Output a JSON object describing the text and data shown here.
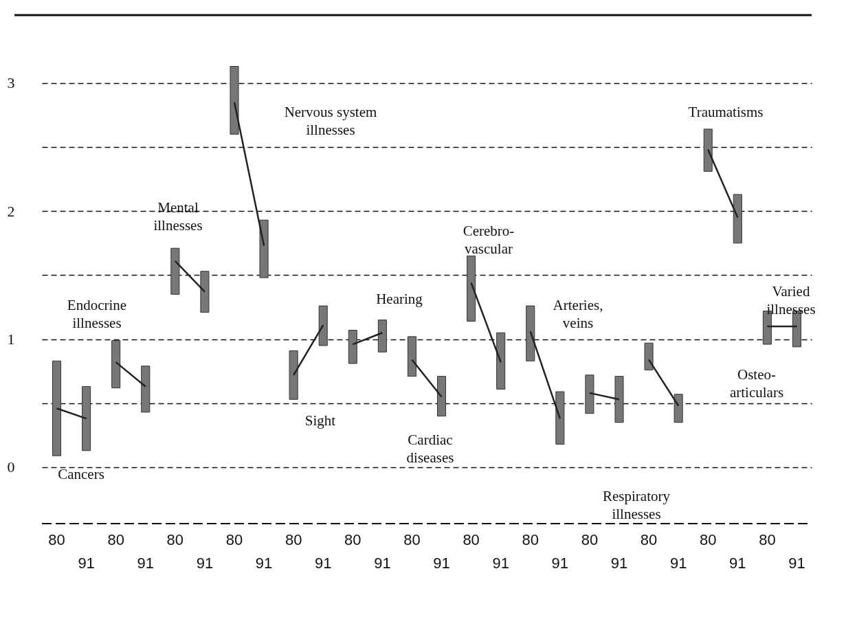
{
  "chart_data": {
    "type": "bar",
    "categories": [
      "80",
      "91",
      "80",
      "91",
      "80",
      "91",
      "80",
      "91",
      "80",
      "91",
      "80",
      "91",
      "80",
      "91",
      "80",
      "91",
      "80",
      "91",
      "80",
      "91",
      "80",
      "91",
      "80",
      "91",
      "80",
      "91"
    ],
    "series": [
      {
        "color": "#777777",
        "base": [
          0.09,
          0.13,
          0.62,
          0.43,
          1.35,
          1.21,
          2.6,
          1.48,
          0.53,
          0.95,
          0.81,
          0.9,
          0.71,
          0.4,
          1.14,
          0.61,
          0.83,
          0.18,
          0.42,
          0.35,
          0.76,
          0.35,
          2.31,
          1.75,
          0.96,
          0.94
        ],
        "values": [
          0.74,
          0.5,
          0.37,
          0.36,
          0.36,
          0.32,
          0.53,
          0.45,
          0.38,
          0.31,
          0.26,
          0.25,
          0.31,
          0.31,
          0.51,
          0.44,
          0.43,
          0.41,
          0.3,
          0.36,
          0.21,
          0.22,
          0.33,
          0.38,
          0.26,
          0.28
        ]
      },
      {
        "type": "line",
        "color": "#222222",
        "values": [
          0.46,
          0.38,
          null,
          null,
          null,
          null,
          null,
          null,
          null,
          null,
          null,
          null,
          null,
          null,
          null,
          null,
          null,
          null,
          null,
          null,
          null,
          null,
          null,
          null,
          null,
          null
        ]
      },
      {
        "type": "line",
        "color": "#222222",
        "values": [
          null,
          null,
          0.82,
          0.63,
          null,
          null,
          null,
          null,
          null,
          null,
          null,
          null,
          null,
          null,
          null,
          null,
          null,
          null,
          null,
          null,
          null,
          null,
          null,
          null,
          null,
          null
        ]
      },
      {
        "type": "line",
        "color": "#222222",
        "values": [
          null,
          null,
          null,
          null,
          1.61,
          1.37,
          null,
          null,
          null,
          null,
          null,
          null,
          null,
          null,
          null,
          null,
          null,
          null,
          null,
          null,
          null,
          null,
          null,
          null,
          null,
          null
        ]
      },
      {
        "type": "line",
        "color": "#222222",
        "values": [
          null,
          null,
          null,
          null,
          null,
          null,
          2.85,
          1.73,
          null,
          null,
          null,
          null,
          null,
          null,
          null,
          null,
          null,
          null,
          null,
          null,
          null,
          null,
          null,
          null,
          null,
          null
        ]
      },
      {
        "type": "line",
        "color": "#222222",
        "values": [
          null,
          null,
          null,
          null,
          null,
          null,
          null,
          null,
          0.72,
          1.11,
          null,
          null,
          null,
          null,
          null,
          null,
          null,
          null,
          null,
          null,
          null,
          null,
          null,
          null,
          null,
          null
        ]
      },
      {
        "type": "line",
        "color": "#222222",
        "values": [
          null,
          null,
          null,
          null,
          null,
          null,
          null,
          null,
          null,
          null,
          0.96,
          1.05,
          null,
          null,
          null,
          null,
          null,
          null,
          null,
          null,
          null,
          null,
          null,
          null,
          null,
          null
        ]
      },
      {
        "type": "line",
        "color": "#222222",
        "values": [
          null,
          null,
          null,
          null,
          null,
          null,
          null,
          null,
          null,
          null,
          null,
          null,
          0.84,
          0.55,
          null,
          null,
          null,
          null,
          null,
          null,
          null,
          null,
          null,
          null,
          null,
          null
        ]
      },
      {
        "type": "line",
        "color": "#222222",
        "values": [
          null,
          null,
          null,
          null,
          null,
          null,
          null,
          null,
          null,
          null,
          null,
          null,
          null,
          null,
          1.44,
          0.82,
          null,
          null,
          null,
          null,
          null,
          null,
          null,
          null,
          null,
          null
        ]
      },
      {
        "type": "line",
        "color": "#222222",
        "values": [
          null,
          null,
          null,
          null,
          null,
          null,
          null,
          null,
          null,
          null,
          null,
          null,
          null,
          null,
          null,
          null,
          1.06,
          0.38,
          null,
          null,
          null,
          null,
          null,
          null,
          null,
          null
        ]
      },
      {
        "type": "line",
        "color": "#222222",
        "values": [
          null,
          null,
          null,
          null,
          null,
          null,
          null,
          null,
          null,
          null,
          null,
          null,
          null,
          null,
          null,
          null,
          null,
          null,
          0.58,
          0.53,
          null,
          null,
          null,
          null,
          null,
          null
        ]
      },
      {
        "type": "line",
        "color": "#222222",
        "values": [
          null,
          null,
          null,
          null,
          null,
          null,
          null,
          null,
          null,
          null,
          null,
          null,
          null,
          null,
          null,
          null,
          null,
          null,
          null,
          null,
          0.84,
          0.48,
          null,
          null,
          null,
          null
        ]
      },
      {
        "type": "line",
        "color": "#222222",
        "values": [
          null,
          null,
          null,
          null,
          null,
          null,
          null,
          null,
          null,
          null,
          null,
          null,
          null,
          null,
          null,
          null,
          null,
          null,
          null,
          null,
          null,
          null,
          2.48,
          1.95,
          null,
          null
        ]
      },
      {
        "type": "line",
        "color": "#222222",
        "values": [
          null,
          null,
          null,
          null,
          null,
          null,
          null,
          null,
          null,
          null,
          null,
          null,
          null,
          null,
          null,
          null,
          null,
          null,
          null,
          null,
          null,
          null,
          null,
          null,
          1.1,
          1.1
        ]
      }
    ],
    "ylim": [
      -0.44,
      3.53
    ],
    "yticks": [
      0,
      {
        "value": 0.5,
        "label": null
      },
      1,
      {
        "value": 1.5,
        "label": null
      },
      2,
      {
        "value": 2.5,
        "label": null
      },
      3
    ],
    "grid": "y",
    "annotations": [
      "Cancers",
      "Endocrine\nillnesses",
      "Mental\nillnesses",
      "Nervous system\nillnesses",
      "Sight",
      "Hearing",
      "Cardiac\ndiseases",
      "Cerebro-\nvascular",
      "Arteries,\nveins",
      "Respiratory\nillnesses",
      "Osteo-\narticulars",
      "Traumatisms",
      "Varied\nillnesses"
    ]
  }
}
